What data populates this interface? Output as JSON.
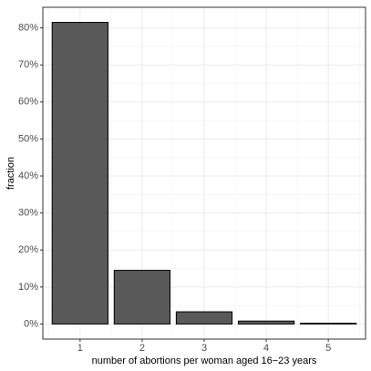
{
  "chart_data": {
    "type": "bar",
    "x_label": "number of abortions per woman aged 16−23 years",
    "y_label": "fraction",
    "categories": [
      "1",
      "2",
      "3",
      "4",
      "5"
    ],
    "values": [
      81.5,
      14.5,
      3.3,
      0.8,
      0.2
    ],
    "color": "#595959",
    "ylim": [
      -4.075,
      85.575
    ],
    "yticks": [
      {
        "value": 0,
        "label": "0%"
      },
      {
        "value": 10,
        "label": "10%"
      },
      {
        "value": 20,
        "label": "20%"
      },
      {
        "value": 30,
        "label": "30%"
      },
      {
        "value": 40,
        "label": "40%"
      },
      {
        "value": 50,
        "label": "50%"
      },
      {
        "value": 60,
        "label": "60%"
      },
      {
        "value": 70,
        "label": "70%"
      },
      {
        "value": 80,
        "label": "80%"
      }
    ],
    "grid": true
  }
}
